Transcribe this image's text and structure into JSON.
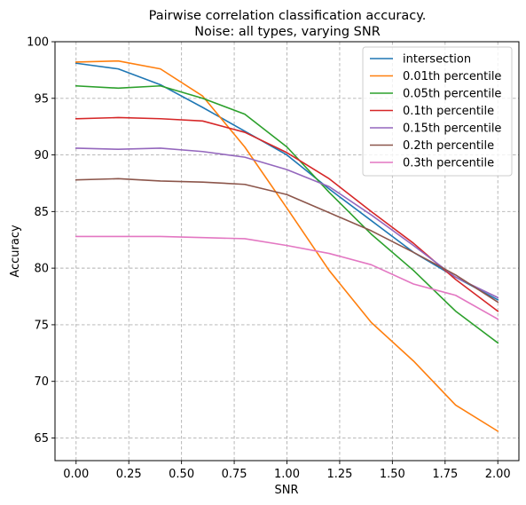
{
  "chart_data": {
    "type": "line",
    "title": "Pairwise correlation classification accuracy.",
    "subtitle": "Noise: all types, varying SNR",
    "xlabel": "SNR",
    "ylabel": "Accuracy",
    "xlim": [
      -0.1,
      2.1
    ],
    "ylim": [
      63,
      100
    ],
    "xticks": [
      0.0,
      0.25,
      0.5,
      0.75,
      1.0,
      1.25,
      1.5,
      1.75,
      2.0
    ],
    "xtick_labels": [
      "0.00",
      "0.25",
      "0.50",
      "0.75",
      "1.00",
      "1.25",
      "1.50",
      "1.75",
      "2.00"
    ],
    "yticks": [
      65,
      70,
      75,
      80,
      85,
      90,
      95,
      100
    ],
    "ytick_labels": [
      "65",
      "70",
      "75",
      "80",
      "85",
      "90",
      "95",
      "100"
    ],
    "grid": true,
    "legend_position": "top-right",
    "x": [
      0.0,
      0.2,
      0.4,
      0.6,
      0.8,
      1.0,
      1.2,
      1.4,
      1.6,
      1.8,
      2.0
    ],
    "series": [
      {
        "name": "intersection",
        "color": "#1f77b4",
        "values": [
          98.1,
          97.6,
          96.2,
          94.2,
          92.1,
          90.0,
          87.0,
          84.2,
          81.4,
          79.2,
          77.2
        ]
      },
      {
        "name": "0.01th percentile",
        "color": "#ff7f0e",
        "values": [
          98.2,
          98.3,
          97.6,
          95.2,
          90.7,
          85.3,
          79.8,
          75.2,
          71.8,
          67.9,
          65.6
        ]
      },
      {
        "name": "0.05th percentile",
        "color": "#2ca02c",
        "values": [
          96.1,
          95.9,
          96.1,
          95.0,
          93.6,
          90.7,
          86.7,
          83.0,
          79.8,
          76.2,
          73.4
        ]
      },
      {
        "name": "0.1th percentile",
        "color": "#d62728",
        "values": [
          93.2,
          93.3,
          93.2,
          93.0,
          92.0,
          90.2,
          87.9,
          85.0,
          82.2,
          79.0,
          76.2
        ]
      },
      {
        "name": "0.15th percentile",
        "color": "#9467bd",
        "values": [
          90.6,
          90.5,
          90.6,
          90.3,
          89.8,
          88.7,
          87.2,
          84.7,
          82.0,
          79.2,
          77.4
        ]
      },
      {
        "name": "0.2th percentile",
        "color": "#8c564b",
        "values": [
          87.8,
          87.9,
          87.7,
          87.6,
          87.4,
          86.5,
          84.9,
          83.3,
          81.4,
          79.4,
          77.0
        ]
      },
      {
        "name": "0.3th percentile",
        "color": "#e377c2",
        "values": [
          82.8,
          82.8,
          82.8,
          82.7,
          82.6,
          82.0,
          81.3,
          80.3,
          78.6,
          77.6,
          75.5
        ]
      }
    ]
  }
}
